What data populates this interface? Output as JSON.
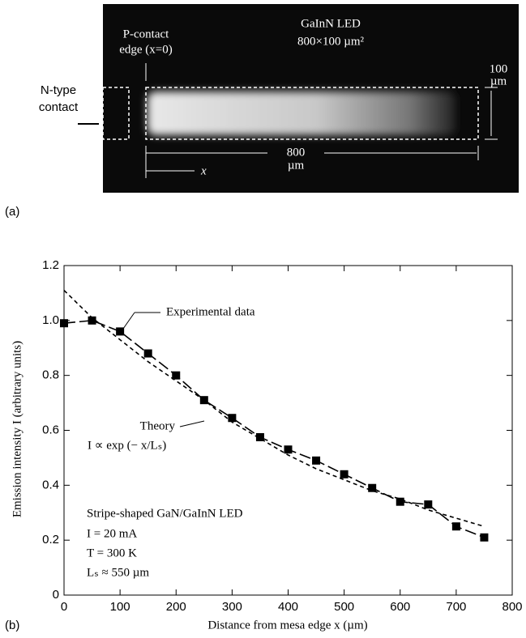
{
  "panel_a": {
    "label": "(a)",
    "title": "GaInN LED",
    "size": "800×100 µm²",
    "p_contact": [
      "P-contact",
      "edge (x=0)"
    ],
    "n_contact": [
      "N-type",
      "contact"
    ],
    "width_value": "100",
    "width_unit": "µm",
    "length_value": "800",
    "length_unit": "µm",
    "x_label": "x"
  },
  "chart_data": {
    "type": "line",
    "panel_label": "(b)",
    "x_label": "Distance from mesa edge  x  (µm)",
    "y_label": "Emission intensity  I  (arbitrary units)",
    "xlim": [
      0,
      800
    ],
    "xticks": [
      0,
      100,
      200,
      300,
      400,
      500,
      600,
      700,
      800
    ],
    "ylim": [
      0,
      1.2
    ],
    "yticks": [
      0,
      0.2,
      0.4,
      0.6,
      0.8,
      {
        "value": 1,
        "label": "1.0"
      },
      1.2
    ],
    "series": [
      {
        "name": "Experimental data",
        "color": "#000000",
        "marker": "square",
        "dash": "long",
        "x": [
          0,
          50,
          100,
          150,
          200,
          250,
          300,
          350,
          400,
          450,
          500,
          550,
          600,
          650,
          700,
          750
        ],
        "values": [
          0.99,
          1.0,
          0.96,
          0.88,
          0.8,
          0.71,
          0.645,
          0.575,
          0.53,
          0.49,
          0.44,
          0.39,
          0.34,
          0.33,
          0.25,
          0.21
        ]
      },
      {
        "name": "Theory",
        "color": "#000000",
        "marker": "none",
        "dash": "short",
        "x": [
          0,
          50,
          100,
          150,
          200,
          250,
          300,
          350,
          400,
          450,
          500,
          550,
          600,
          650,
          700,
          750
        ],
        "values": [
          1.11,
          1.01,
          0.93,
          0.85,
          0.78,
          0.71,
          0.63,
          0.57,
          0.51,
          0.46,
          0.42,
          0.38,
          0.35,
          0.31,
          0.28,
          0.25
        ]
      }
    ],
    "theory_formula": "I ∝ exp (− x/Lₛ)",
    "conditions": [
      "Stripe-shaped GaN/GaInN LED",
      "I  = 20 mA",
      "T = 300 K",
      "Lₛ ≈ 550 µm"
    ]
  }
}
